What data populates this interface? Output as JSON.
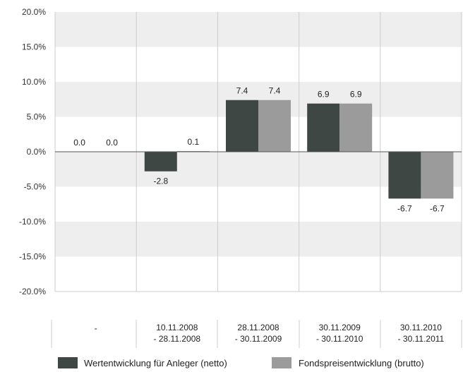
{
  "chart_data": {
    "type": "bar",
    "categories": [
      [
        "-"
      ],
      [
        "10.11.2008",
        "- 28.11.2008"
      ],
      [
        "28.11.2008",
        "- 30.11.2009"
      ],
      [
        "30.11.2009",
        "- 30.11.2010"
      ],
      [
        "30.11.2010",
        "- 30.11.2011"
      ]
    ],
    "series": [
      {
        "name": "Wertentwicklung für Anleger (netto)",
        "values": [
          0.0,
          -2.8,
          7.4,
          6.9,
          -6.7
        ]
      },
      {
        "name": "Fondspreisentwicklung (brutto)",
        "values": [
          0.0,
          0.1,
          7.4,
          6.9,
          -6.7
        ]
      }
    ],
    "data_labels": [
      [
        "0.0",
        "-2.8",
        "7.4",
        "6.9",
        "-6.7"
      ],
      [
        "0.0",
        "0.1",
        "7.4",
        "6.9",
        "-6.7"
      ]
    ],
    "yticks": [
      20,
      15,
      10,
      5,
      0,
      -5,
      -10,
      -15,
      -20
    ],
    "ytick_labels": [
      "20.0%",
      "15.0%",
      "10.0%",
      "5.0%",
      "0.0%",
      "-5.0%",
      "-10.0%",
      "-15.0%",
      "-20.0%"
    ],
    "ylim": [
      -20,
      20
    ],
    "grid": true,
    "legend_position": "bottom",
    "colors": {
      "series": [
        "#3f4745",
        "#9b9b9b"
      ],
      "band": "#eeeeee",
      "plot_bg": "#ffffff",
      "zero_line": "#555555",
      "divider": "#cccccc"
    }
  }
}
